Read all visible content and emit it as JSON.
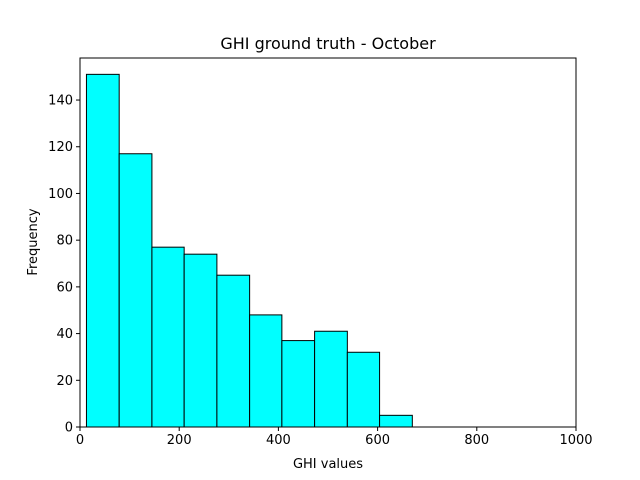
{
  "chart_data": {
    "type": "bar",
    "subtype": "histogram",
    "title": "GHI ground truth - October",
    "xlabel": "GHI values",
    "ylabel": "Frequency",
    "xlim": [
      0,
      1000
    ],
    "ylim": [
      0,
      158
    ],
    "xticks": [
      0,
      200,
      400,
      600,
      800,
      1000
    ],
    "yticks": [
      0,
      20,
      40,
      60,
      80,
      100,
      120,
      140
    ],
    "bin_edges": [
      13,
      79,
      145,
      210,
      276,
      342,
      407,
      473,
      539,
      604,
      670
    ],
    "values": [
      151,
      117,
      77,
      74,
      65,
      48,
      37,
      41,
      32,
      5
    ],
    "bar_color": "#00ffff",
    "edge_color": "#000000",
    "grid": false,
    "legend": "none"
  }
}
